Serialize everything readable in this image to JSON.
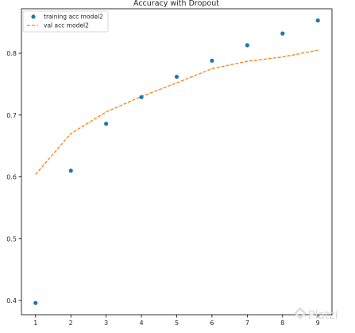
{
  "chart_data": {
    "type": "line",
    "title": "Accuracy with Dropout",
    "xlabel": "",
    "ylabel": "",
    "x": [
      1,
      2,
      3,
      4,
      5,
      6,
      7,
      8,
      9
    ],
    "xticks": [
      "1",
      "2",
      "3",
      "4",
      "5",
      "6",
      "7",
      "8",
      "9"
    ],
    "yticks": [
      "0.4",
      "0.5",
      "0.6",
      "0.7",
      "0.8"
    ],
    "ytick_values": [
      0.4,
      0.5,
      0.6,
      0.7,
      0.8
    ],
    "xlim": [
      0.6,
      9.4
    ],
    "ylim": [
      0.377,
      0.872
    ],
    "grid": false,
    "legend_position": "top-left",
    "series": [
      {
        "name": "training acc model2",
        "style": "scatter",
        "color": "#1f77b4",
        "values": [
          0.396,
          0.61,
          0.686,
          0.729,
          0.762,
          0.788,
          0.813,
          0.832,
          0.853
        ]
      },
      {
        "name": "val acc model2",
        "style": "dashed-line",
        "color": "#ff7f0e",
        "values": [
          0.604,
          0.67,
          0.705,
          0.73,
          0.752,
          0.775,
          0.787,
          0.794,
          0.805
        ]
      }
    ]
  },
  "watermark": {
    "text": "Platzi",
    "icon": "platzi-logo-icon"
  }
}
